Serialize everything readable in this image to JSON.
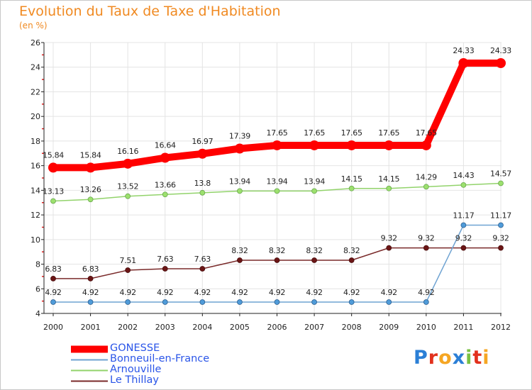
{
  "title": "Evolution du Taux de Taxe d'Habitation",
  "subtitle": "(en %)",
  "brand": "Proxiti",
  "chart_data": {
    "type": "line",
    "title": "Evolution du Taux de Taxe d'Habitation",
    "ylabel": "(en %)",
    "xlabel": "",
    "x": [
      "2000",
      "2001",
      "2002",
      "2003",
      "2004",
      "2005",
      "2006",
      "2007",
      "2008",
      "2009",
      "2010",
      "2011",
      "2012"
    ],
    "ylim": [
      4,
      26
    ],
    "yticks": [
      4,
      6,
      8,
      10,
      12,
      14,
      16,
      18,
      20,
      22,
      24,
      26
    ],
    "legend_position": "bottom-left",
    "series": [
      {
        "name": "GONESSE",
        "color": "#ff0000",
        "values": [
          15.84,
          15.84,
          16.16,
          16.64,
          16.97,
          17.39,
          17.65,
          17.65,
          17.65,
          17.65,
          17.65,
          24.33,
          24.33
        ],
        "labels": [
          "15.84",
          "15.84",
          "16.16",
          "16.64",
          "16.97",
          "17.39",
          "17.65",
          "17.65",
          "17.65",
          "17.65",
          "17.65",
          "24.33",
          "24.33"
        ]
      },
      {
        "name": "Bonneuil-en-France",
        "color": "#6fa3d2",
        "values": [
          4.92,
          4.92,
          4.92,
          4.92,
          4.92,
          4.92,
          4.92,
          4.92,
          4.92,
          4.92,
          4.92,
          11.17,
          11.17
        ],
        "labels": [
          "4.92",
          "4.92",
          "4.92",
          "4.92",
          "4.92",
          "4.92",
          "4.92",
          "4.92",
          "4.92",
          "4.92",
          "4.92",
          "11.17",
          "11.17"
        ]
      },
      {
        "name": "Arnouville",
        "color": "#92d36b",
        "values": [
          13.13,
          13.26,
          13.52,
          13.66,
          13.8,
          13.94,
          13.94,
          13.94,
          14.15,
          14.15,
          14.29,
          14.43,
          14.57
        ],
        "labels": [
          "13.13",
          "13.26",
          "13.52",
          "13.66",
          "13.8",
          "13.94",
          "13.94",
          "13.94",
          "14.15",
          "14.15",
          "14.29",
          "14.43",
          "14.57"
        ]
      },
      {
        "name": "Le Thillay",
        "color": "#7a2a2a",
        "values": [
          6.83,
          6.83,
          7.51,
          7.63,
          7.63,
          8.32,
          8.32,
          8.32,
          8.32,
          9.32,
          9.32,
          9.32,
          9.32
        ],
        "labels": [
          "6.83",
          "6.83",
          "7.51",
          "7.63",
          "7.63",
          "8.32",
          "8.32",
          "8.32",
          "8.32",
          "9.32",
          "9.32",
          "9.32",
          "9.32"
        ]
      }
    ]
  },
  "styles": {
    "title_color": "#f08a22",
    "legend_text_color": "#2a55e8",
    "grid_color": "#e4e4e4",
    "axis_color": "#222222",
    "logo_colors": [
      "#2b7fd6",
      "#e2311d",
      "#f5a623",
      "#2b7fd6",
      "#7ac143",
      "#e2311d",
      "#f5a623"
    ]
  }
}
